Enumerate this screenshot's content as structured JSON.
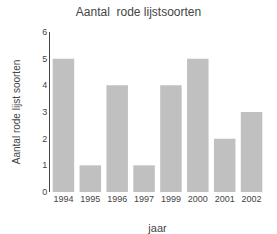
{
  "chart_data": {
    "type": "bar",
    "title": "Aantal  rode lijstsoorten",
    "xlabel": "jaar",
    "ylabel": "Aantal rode lijst soorten",
    "categories": [
      "1994",
      "1995",
      "1996",
      "1997",
      "1999",
      "2000",
      "2001",
      "2002"
    ],
    "values": [
      5,
      1,
      4,
      1,
      4,
      5,
      2,
      3
    ],
    "color": "#c0c0c0",
    "ylim": [
      0,
      6
    ],
    "yticks": [
      0,
      1,
      2,
      3,
      4,
      5,
      6
    ],
    "grid": false
  }
}
